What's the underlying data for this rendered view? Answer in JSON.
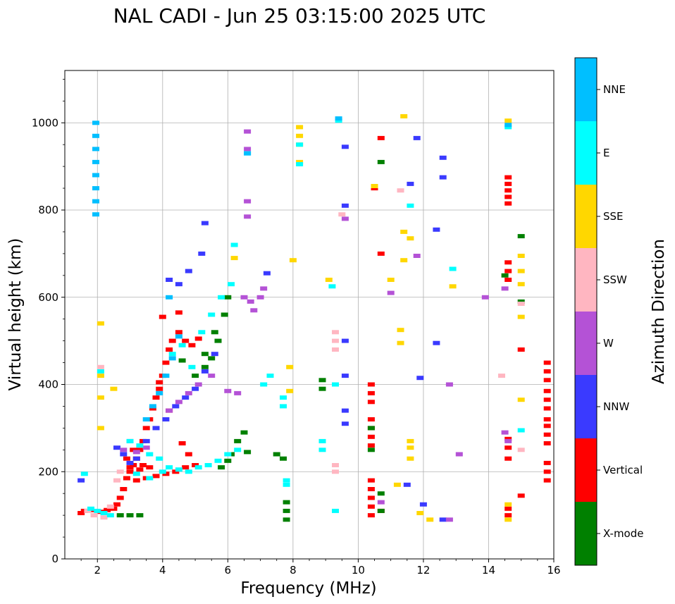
{
  "chart_data": {
    "type": "scatter",
    "title": "NAL CADI - Jun 25 03:15:00 2025 UTC",
    "xlabel": "Frequency (MHz)",
    "ylabel": "Virtual height (km)",
    "xlim": [
      1,
      16
    ],
    "ylim": [
      0,
      1120
    ],
    "xticks": [
      2,
      4,
      6,
      8,
      10,
      12,
      14,
      16
    ],
    "yticks": [
      0,
      200,
      400,
      600,
      800,
      1000
    ],
    "grid": true,
    "colorbar": {
      "label": "Azimuth Direction",
      "categories": [
        {
          "name": "X-mode",
          "color": "#008000"
        },
        {
          "name": "Vertical",
          "color": "#ff0000"
        },
        {
          "name": "NNW",
          "color": "#3a3aff"
        },
        {
          "name": "W",
          "color": "#b452d6"
        },
        {
          "name": "SSW",
          "color": "#ffb6c1"
        },
        {
          "name": "SSE",
          "color": "#ffd700"
        },
        {
          "name": "E",
          "color": "#00ffff"
        },
        {
          "name": "NNE",
          "color": "#00bfff"
        }
      ]
    },
    "series": [
      {
        "name": "Vertical",
        "points": [
          [
            1.5,
            105
          ],
          [
            1.6,
            110
          ],
          [
            1.8,
            112
          ],
          [
            2.1,
            108
          ],
          [
            2.3,
            112
          ],
          [
            2.5,
            115
          ],
          [
            2.6,
            125
          ],
          [
            2.7,
            140
          ],
          [
            2.8,
            160
          ],
          [
            2.9,
            185
          ],
          [
            3.0,
            200
          ],
          [
            3.1,
            215
          ],
          [
            3.2,
            230
          ],
          [
            3.3,
            250
          ],
          [
            3.4,
            270
          ],
          [
            3.5,
            300
          ],
          [
            3.6,
            320
          ],
          [
            3.7,
            345
          ],
          [
            3.8,
            370
          ],
          [
            3.9,
            390
          ],
          [
            4.0,
            420
          ],
          [
            4.1,
            450
          ],
          [
            4.2,
            480
          ],
          [
            4.3,
            500
          ],
          [
            4.5,
            520
          ],
          [
            4.7,
            500
          ],
          [
            4.9,
            490
          ],
          [
            5.1,
            505
          ],
          [
            3.2,
            180
          ],
          [
            3.5,
            185
          ],
          [
            3.8,
            190
          ],
          [
            4.1,
            195
          ],
          [
            4.4,
            200
          ],
          [
            4.7,
            210
          ],
          [
            5.0,
            215
          ],
          [
            3.0,
            210
          ],
          [
            3.3,
            205
          ],
          [
            3.6,
            210
          ],
          [
            4.0,
            555
          ],
          [
            4.5,
            565
          ],
          [
            3.4,
            215
          ],
          [
            2.9,
            230
          ],
          [
            3.1,
            250
          ],
          [
            3.9,
            405
          ],
          [
            4.2,
            340
          ],
          [
            4.6,
            265
          ],
          [
            4.8,
            240
          ],
          [
            10.4,
            100
          ],
          [
            10.4,
            120
          ],
          [
            10.4,
            140
          ],
          [
            10.4,
            160
          ],
          [
            10.4,
            180
          ],
          [
            10.4,
            260
          ],
          [
            10.4,
            280
          ],
          [
            10.4,
            300
          ],
          [
            10.4,
            320
          ],
          [
            10.4,
            360
          ],
          [
            10.4,
            380
          ],
          [
            10.4,
            400
          ],
          [
            10.7,
            965
          ],
          [
            10.5,
            850
          ],
          [
            10.7,
            700
          ],
          [
            10.7,
            110
          ],
          [
            14.6,
            100
          ],
          [
            14.6,
            115
          ],
          [
            14.6,
            230
          ],
          [
            14.6,
            255
          ],
          [
            14.6,
            275
          ],
          [
            14.6,
            640
          ],
          [
            14.6,
            660
          ],
          [
            14.6,
            680
          ],
          [
            14.6,
            815
          ],
          [
            14.6,
            830
          ],
          [
            14.6,
            845
          ],
          [
            14.6,
            860
          ],
          [
            14.6,
            875
          ],
          [
            15.0,
            480
          ],
          [
            15.0,
            145
          ],
          [
            15.8,
            180
          ],
          [
            15.8,
            200
          ],
          [
            15.8,
            220
          ],
          [
            15.8,
            265
          ],
          [
            15.8,
            285
          ],
          [
            15.8,
            305
          ],
          [
            15.8,
            320
          ],
          [
            15.8,
            345
          ],
          [
            15.8,
            365
          ],
          [
            15.8,
            385
          ],
          [
            15.8,
            410
          ],
          [
            15.8,
            430
          ],
          [
            15.8,
            450
          ]
        ]
      },
      {
        "name": "X-mode",
        "points": [
          [
            2.7,
            100
          ],
          [
            3.0,
            100
          ],
          [
            3.3,
            100
          ],
          [
            5.5,
            460
          ],
          [
            5.7,
            500
          ],
          [
            5.9,
            560
          ],
          [
            6.0,
            600
          ],
          [
            5.3,
            470
          ],
          [
            5.6,
            520
          ],
          [
            6.3,
            270
          ],
          [
            6.5,
            290
          ],
          [
            6.6,
            245
          ],
          [
            5.8,
            210
          ],
          [
            6.0,
            225
          ],
          [
            6.1,
            240
          ],
          [
            7.5,
            240
          ],
          [
            7.7,
            230
          ],
          [
            7.8,
            90
          ],
          [
            7.8,
            110
          ],
          [
            7.8,
            130
          ],
          [
            8.9,
            390
          ],
          [
            8.9,
            410
          ],
          [
            10.4,
            250
          ],
          [
            10.4,
            300
          ],
          [
            10.7,
            910
          ],
          [
            10.7,
            150
          ],
          [
            10.7,
            110
          ],
          [
            14.5,
            650
          ],
          [
            15.0,
            590
          ],
          [
            15.0,
            740
          ],
          [
            5.0,
            420
          ],
          [
            5.3,
            440
          ],
          [
            4.6,
            455
          ]
        ]
      },
      {
        "name": "NNW",
        "points": [
          [
            1.5,
            180
          ],
          [
            2.6,
            255
          ],
          [
            2.8,
            240
          ],
          [
            3.0,
            220
          ],
          [
            3.2,
            230
          ],
          [
            3.5,
            270
          ],
          [
            3.8,
            300
          ],
          [
            4.1,
            320
          ],
          [
            4.4,
            350
          ],
          [
            4.7,
            370
          ],
          [
            5.0,
            390
          ],
          [
            5.3,
            430
          ],
          [
            5.6,
            470
          ],
          [
            4.2,
            640
          ],
          [
            4.5,
            630
          ],
          [
            4.8,
            660
          ],
          [
            5.2,
            700
          ],
          [
            5.3,
            770
          ],
          [
            7.2,
            655
          ],
          [
            9.6,
            945
          ],
          [
            9.6,
            810
          ],
          [
            9.6,
            500
          ],
          [
            9.6,
            420
          ],
          [
            9.6,
            340
          ],
          [
            9.6,
            310
          ],
          [
            11.8,
            965
          ],
          [
            12.6,
            920
          ],
          [
            12.6,
            875
          ],
          [
            12.4,
            755
          ],
          [
            12.4,
            495
          ],
          [
            12.0,
            125
          ],
          [
            12.6,
            90
          ],
          [
            11.6,
            860
          ],
          [
            11.9,
            415
          ],
          [
            11.5,
            170
          ]
        ]
      },
      {
        "name": "W",
        "points": [
          [
            2.8,
            250
          ],
          [
            3.0,
            270
          ],
          [
            3.2,
            245
          ],
          [
            3.5,
            255
          ],
          [
            4.2,
            340
          ],
          [
            4.5,
            360
          ],
          [
            4.8,
            380
          ],
          [
            5.1,
            400
          ],
          [
            5.5,
            420
          ],
          [
            6.0,
            385
          ],
          [
            6.3,
            380
          ],
          [
            6.5,
            600
          ],
          [
            6.7,
            590
          ],
          [
            6.8,
            570
          ],
          [
            7.1,
            620
          ],
          [
            7.0,
            600
          ],
          [
            6.6,
            980
          ],
          [
            6.6,
            940
          ],
          [
            6.6,
            820
          ],
          [
            6.6,
            785
          ],
          [
            9.6,
            780
          ],
          [
            11.0,
            610
          ],
          [
            11.8,
            695
          ],
          [
            13.1,
            240
          ],
          [
            13.9,
            600
          ],
          [
            14.5,
            620
          ],
          [
            14.5,
            290
          ],
          [
            14.6,
            270
          ],
          [
            10.7,
            130
          ],
          [
            12.8,
            90
          ],
          [
            12.8,
            400
          ]
        ]
      },
      {
        "name": "SSW",
        "points": [
          [
            1.7,
            110
          ],
          [
            1.9,
            100
          ],
          [
            2.2,
            95
          ],
          [
            2.4,
            120
          ],
          [
            2.6,
            180
          ],
          [
            2.7,
            200
          ],
          [
            9.3,
            500
          ],
          [
            9.3,
            520
          ],
          [
            9.3,
            480
          ],
          [
            9.3,
            215
          ],
          [
            9.3,
            200
          ],
          [
            9.5,
            790
          ],
          [
            11.3,
            845
          ],
          [
            14.4,
            420
          ],
          [
            15.0,
            250
          ],
          [
            15.0,
            585
          ],
          [
            2.1,
            440
          ]
        ]
      },
      {
        "name": "SSE",
        "points": [
          [
            2.1,
            540
          ],
          [
            2.1,
            420
          ],
          [
            2.1,
            370
          ],
          [
            2.1,
            300
          ],
          [
            2.5,
            390
          ],
          [
            6.2,
            690
          ],
          [
            8.2,
            990
          ],
          [
            8.2,
            970
          ],
          [
            8.2,
            950
          ],
          [
            8.2,
            910
          ],
          [
            8.0,
            685
          ],
          [
            7.9,
            440
          ],
          [
            7.9,
            385
          ],
          [
            10.5,
            855
          ],
          [
            11.3,
            525
          ],
          [
            11.3,
            495
          ],
          [
            11.4,
            750
          ],
          [
            11.6,
            735
          ],
          [
            11.4,
            685
          ],
          [
            11.6,
            270
          ],
          [
            11.6,
            255
          ],
          [
            11.6,
            230
          ],
          [
            11.0,
            640
          ],
          [
            11.2,
            170
          ],
          [
            11.9,
            105
          ],
          [
            12.2,
            90
          ],
          [
            11.4,
            1015
          ],
          [
            12.9,
            625
          ],
          [
            14.6,
            125
          ],
          [
            14.6,
            90
          ],
          [
            14.6,
            1005
          ],
          [
            15.0,
            660
          ],
          [
            15.0,
            630
          ],
          [
            15.0,
            555
          ],
          [
            15.0,
            365
          ],
          [
            15.0,
            695
          ],
          [
            9.1,
            640
          ]
        ]
      },
      {
        "name": "E",
        "points": [
          [
            1.6,
            195
          ],
          [
            1.8,
            115
          ],
          [
            2.0,
            110
          ],
          [
            2.2,
            105
          ],
          [
            2.4,
            100
          ],
          [
            2.1,
            430
          ],
          [
            3.0,
            270
          ],
          [
            3.3,
            260
          ],
          [
            3.6,
            240
          ],
          [
            3.9,
            230
          ],
          [
            4.2,
            210
          ],
          [
            4.5,
            205
          ],
          [
            4.8,
            200
          ],
          [
            5.1,
            210
          ],
          [
            5.4,
            215
          ],
          [
            5.7,
            225
          ],
          [
            6.0,
            240
          ],
          [
            6.3,
            250
          ],
          [
            3.2,
            195
          ],
          [
            3.6,
            185
          ],
          [
            4.0,
            200
          ],
          [
            4.3,
            470
          ],
          [
            4.6,
            490
          ],
          [
            4.9,
            440
          ],
          [
            5.2,
            520
          ],
          [
            5.5,
            560
          ],
          [
            5.8,
            600
          ],
          [
            6.1,
            630
          ],
          [
            6.2,
            720
          ],
          [
            6.6,
            930
          ],
          [
            7.1,
            400
          ],
          [
            7.3,
            420
          ],
          [
            7.7,
            350
          ],
          [
            7.7,
            370
          ],
          [
            7.8,
            170
          ],
          [
            7.8,
            180
          ],
          [
            8.2,
            950
          ],
          [
            8.2,
            905
          ],
          [
            8.9,
            270
          ],
          [
            9.2,
            625
          ],
          [
            9.3,
            400
          ],
          [
            9.3,
            110
          ],
          [
            11.6,
            810
          ],
          [
            12.9,
            665
          ],
          [
            14.6,
            990
          ],
          [
            15.0,
            295
          ],
          [
            8.9,
            250
          ],
          [
            9.4,
            1005
          ]
        ]
      },
      {
        "name": "NNE",
        "points": [
          [
            1.95,
            790
          ],
          [
            1.95,
            820
          ],
          [
            1.95,
            850
          ],
          [
            1.95,
            880
          ],
          [
            1.95,
            910
          ],
          [
            1.95,
            940
          ],
          [
            1.95,
            970
          ],
          [
            1.95,
            1000
          ],
          [
            3.5,
            320
          ],
          [
            3.7,
            350
          ],
          [
            3.9,
            380
          ],
          [
            4.1,
            420
          ],
          [
            4.3,
            460
          ],
          [
            4.5,
            510
          ],
          [
            4.2,
            600
          ],
          [
            6.6,
            930
          ],
          [
            9.4,
            1010
          ],
          [
            14.6,
            995
          ]
        ]
      }
    ]
  }
}
